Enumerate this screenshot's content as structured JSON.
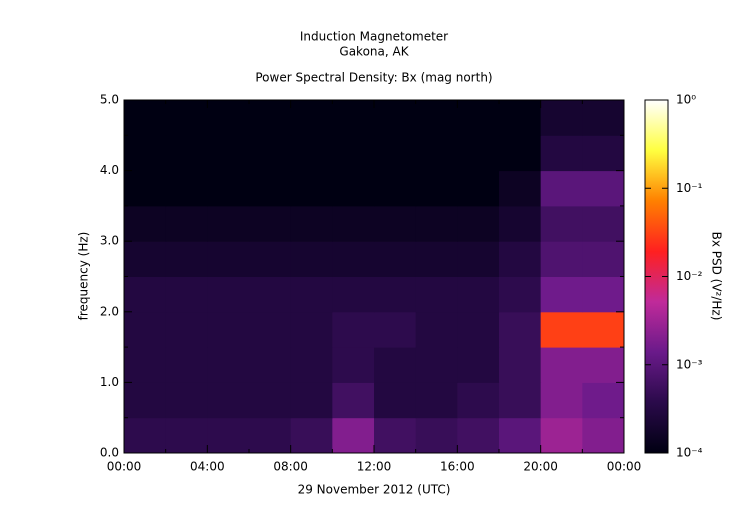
{
  "chart_data": {
    "type": "heatmap",
    "title": "Induction Magnetometer",
    "subtitle": "Gakona, AK",
    "plot_title": "Power Spectral Density: Bx (mag north)",
    "x_label": "29 November 2012 (UTC)",
    "y_label": "frequency (Hz)",
    "colorbar_label": "Bx PSD (V²/Hz)",
    "xlim": [
      0,
      24
    ],
    "xticks": [
      {
        "value": 0,
        "label": "00:00"
      },
      {
        "value": 4,
        "label": "04:00"
      },
      {
        "value": 8,
        "label": "08:00"
      },
      {
        "value": 12,
        "label": "12:00"
      },
      {
        "value": 16,
        "label": "16:00"
      },
      {
        "value": 20,
        "label": "20:00"
      },
      {
        "value": 24,
        "label": "00:00"
      }
    ],
    "ylim": [
      0,
      5
    ],
    "yticks": [
      {
        "value": 0,
        "label": "0.0"
      },
      {
        "value": 1,
        "label": "1.0"
      },
      {
        "value": 2,
        "label": "2.0"
      },
      {
        "value": 3,
        "label": "3.0"
      },
      {
        "value": 4,
        "label": "4.0"
      },
      {
        "value": 5,
        "label": "5.0"
      }
    ],
    "x_bins": [
      0,
      2,
      4,
      6,
      8,
      10,
      12,
      14,
      16,
      18,
      20,
      22,
      24
    ],
    "y_bins": [
      0,
      0.5,
      1,
      1.5,
      2,
      2.5,
      3,
      3.5,
      4,
      4.5,
      5
    ],
    "z": [
      [
        0.0004,
        0.0004,
        0.0004,
        0.0004,
        0.0005,
        0.002,
        0.0006,
        0.0005,
        0.0006,
        0.001,
        0.003,
        0.002
      ],
      [
        0.0003,
        0.0003,
        0.0003,
        0.0003,
        0.0003,
        0.0006,
        0.0003,
        0.0003,
        0.0004,
        0.0005,
        0.002,
        0.0015
      ],
      [
        0.0003,
        0.0003,
        0.0003,
        0.0003,
        0.0003,
        0.0004,
        0.0003,
        0.0003,
        0.0003,
        0.0005,
        0.002,
        0.002
      ],
      [
        0.0003,
        0.0003,
        0.0003,
        0.0003,
        0.0003,
        0.0004,
        0.0004,
        0.0003,
        0.0003,
        0.0005,
        0.03,
        0.03
      ],
      [
        0.0003,
        0.0003,
        0.0003,
        0.0003,
        0.0003,
        0.0003,
        0.0003,
        0.0003,
        0.0003,
        0.0004,
        0.0015,
        0.0015
      ],
      [
        0.0002,
        0.0002,
        0.0002,
        0.0002,
        0.0002,
        0.0002,
        0.0002,
        0.0002,
        0.0002,
        0.0003,
        0.0008,
        0.0008
      ],
      [
        0.00015,
        0.00015,
        0.00015,
        0.00015,
        0.00015,
        0.00015,
        0.00015,
        0.00015,
        0.00015,
        0.0002,
        0.0006,
        0.0006
      ],
      [
        0.0001,
        0.0001,
        0.0001,
        0.0001,
        0.0001,
        0.0001,
        0.0001,
        0.0001,
        0.0001,
        0.00015,
        0.001,
        0.001
      ],
      [
        0.0001,
        0.0001,
        0.0001,
        0.0001,
        0.0001,
        0.0001,
        0.0001,
        0.0001,
        0.0001,
        0.0001,
        0.0003,
        0.0003
      ],
      [
        0.0001,
        0.0001,
        0.0001,
        0.0001,
        0.0001,
        0.0001,
        0.0001,
        0.0001,
        0.0001,
        0.0001,
        0.0002,
        0.0002
      ]
    ],
    "zlim": [
      0.0001,
      1
    ],
    "zscale": "log",
    "zticks": [
      {
        "value": 0.0001,
        "label": "10⁻⁴"
      },
      {
        "value": 0.001,
        "label": "10⁻³"
      },
      {
        "value": 0.01,
        "label": "10⁻²"
      },
      {
        "value": 0.1,
        "label": "10⁻¹"
      },
      {
        "value": 1,
        "label": "10⁰"
      }
    ],
    "colormap": [
      "#000012",
      "#2a0a4a",
      "#6a1a8a",
      "#c02a9a",
      "#ff2020",
      "#ff8000",
      "#ffff40",
      "#ffffff"
    ]
  }
}
